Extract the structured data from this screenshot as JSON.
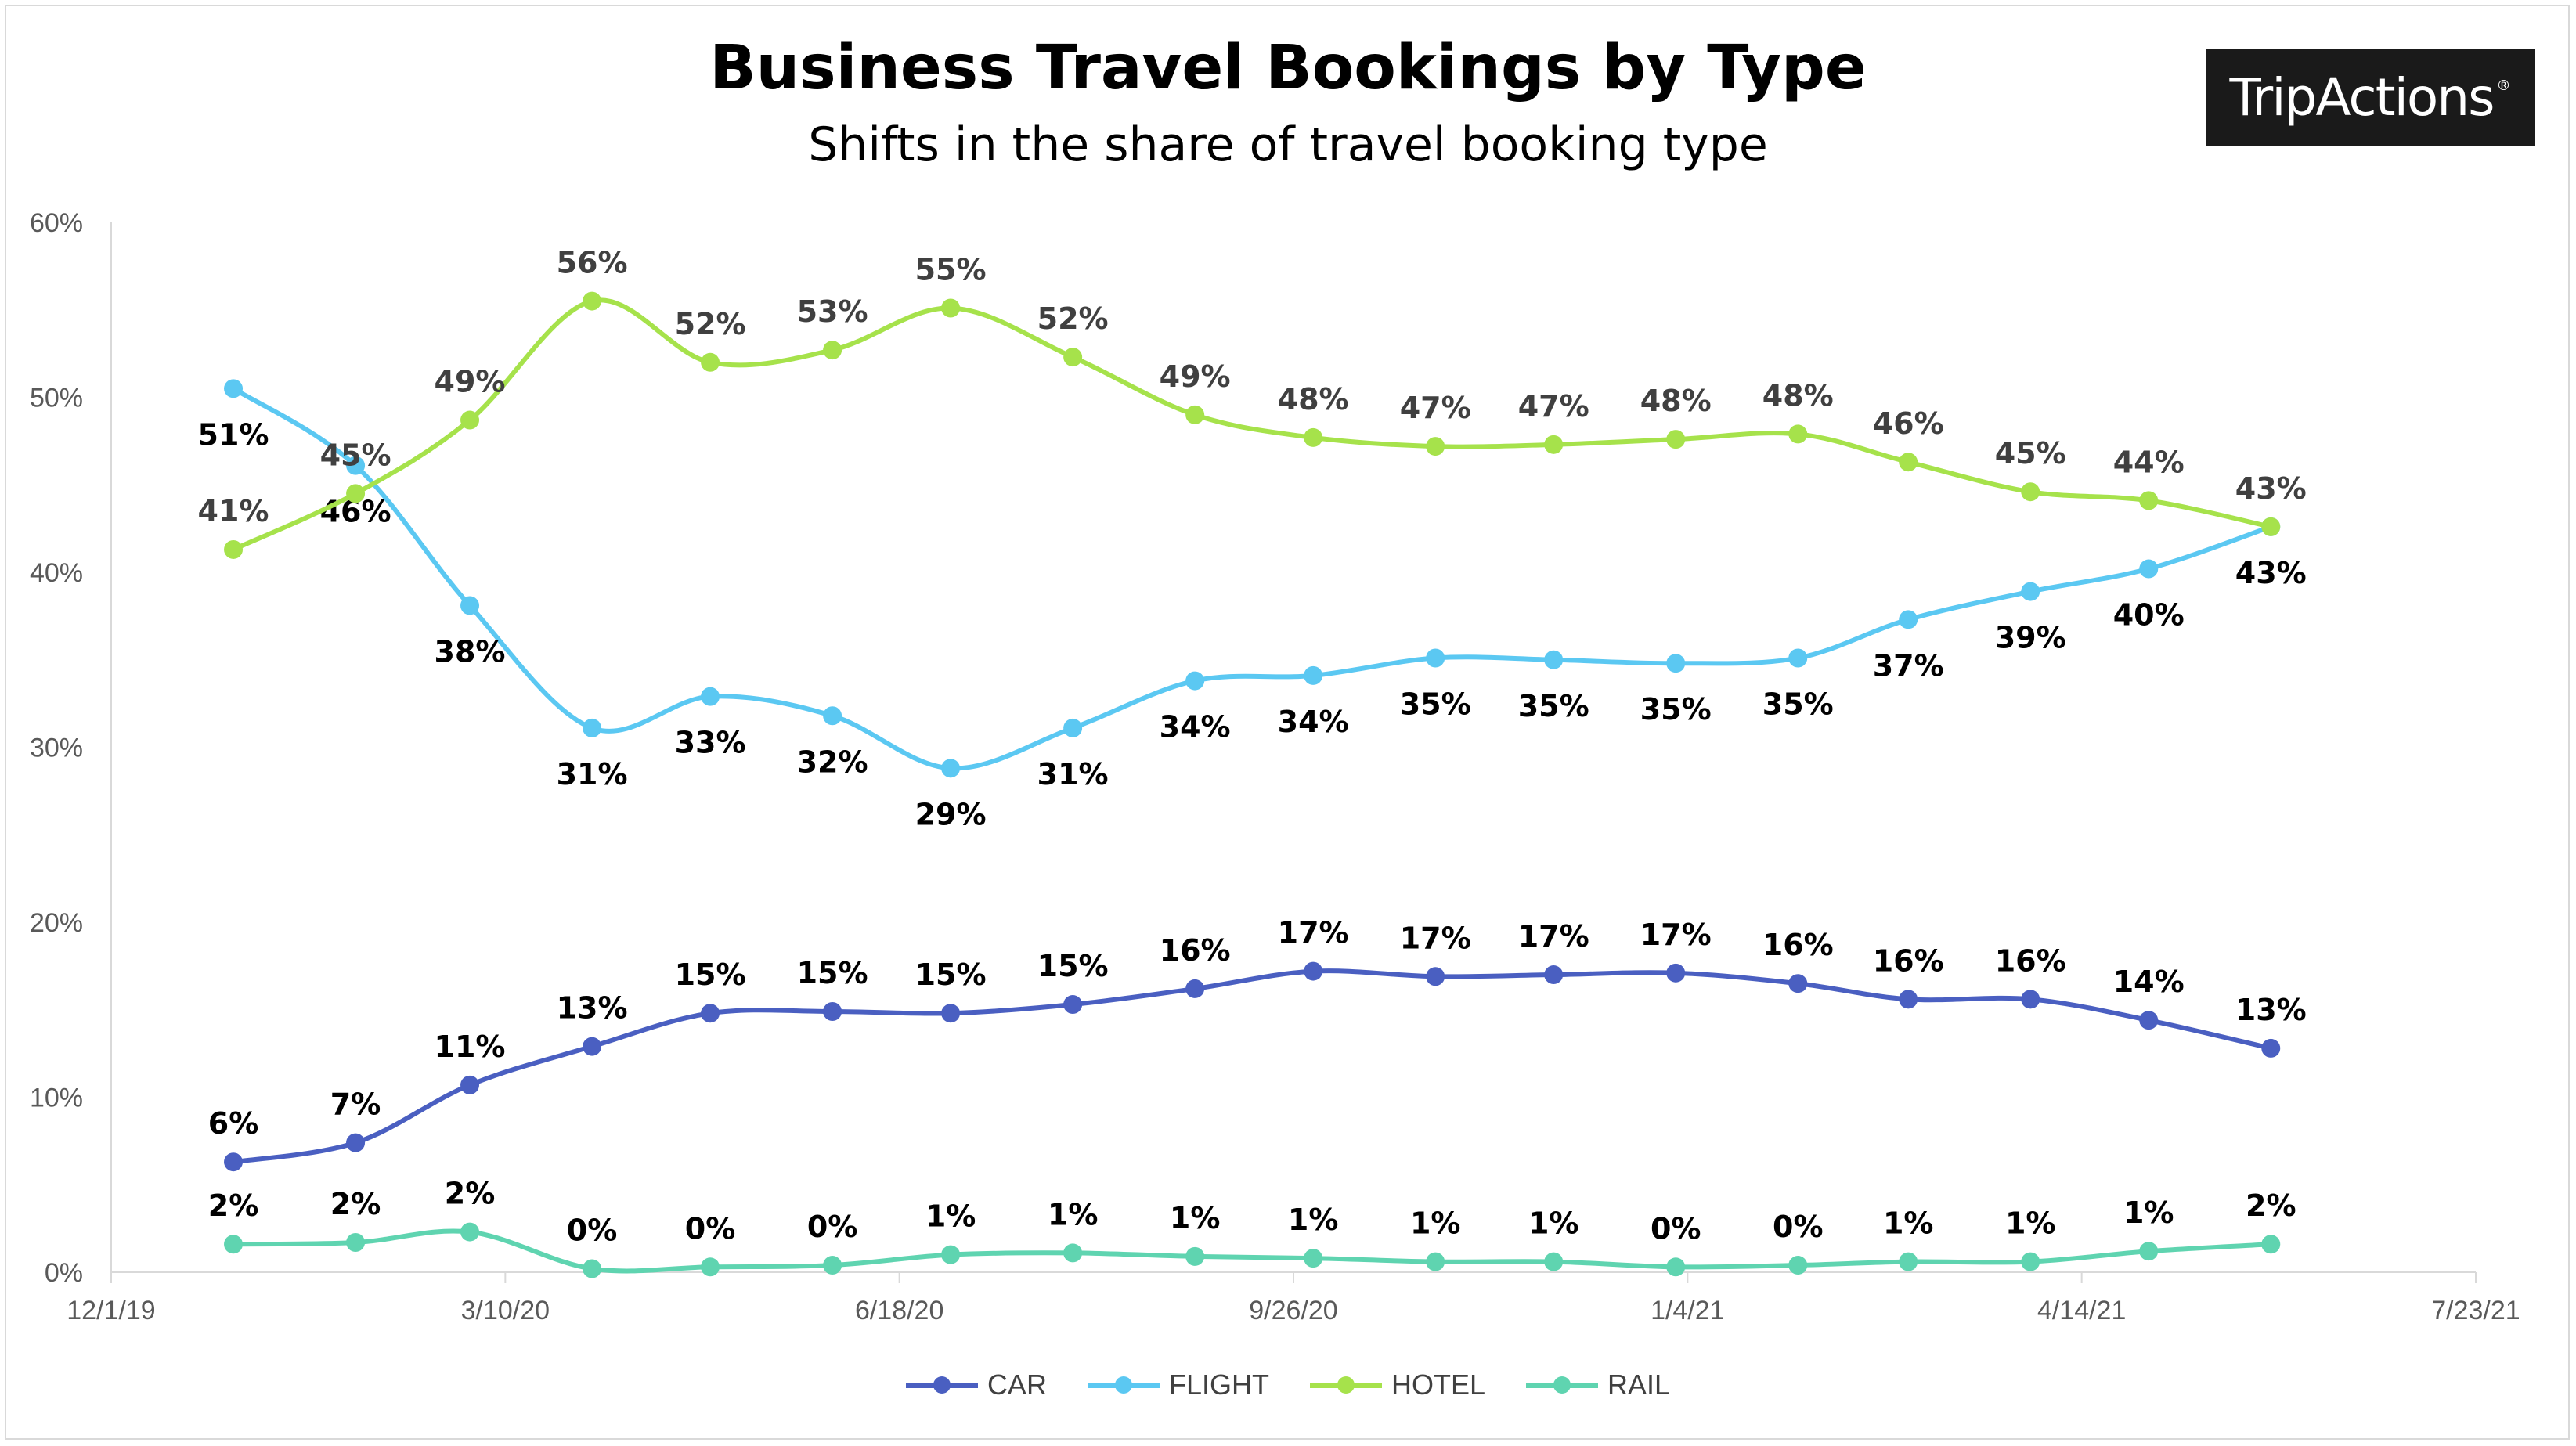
{
  "chart_data": {
    "type": "line",
    "title": "Business Travel Bookings by Type",
    "subtitle": "Shifts in the share of travel booking type",
    "brand": "TripActions",
    "x_ticks": [
      "12/1/19",
      "3/10/20",
      "6/18/20",
      "9/26/20",
      "1/4/21",
      "4/14/21",
      "7/23/21"
    ],
    "x_tick_dates": [
      "2019-12-01",
      "2020-03-10",
      "2020-06-18",
      "2020-09-26",
      "2021-01-04",
      "2021-04-14",
      "2021-07-23"
    ],
    "x": [
      "2020-01-01",
      "2020-02-01",
      "2020-03-01",
      "2020-04-01",
      "2020-05-01",
      "2020-06-01",
      "2020-07-01",
      "2020-08-01",
      "2020-09-01",
      "2020-10-01",
      "2020-11-01",
      "2020-12-01",
      "2021-01-01",
      "2021-02-01",
      "2021-03-01",
      "2021-04-01",
      "2021-05-01",
      "2021-06-01"
    ],
    "y_ticks": [
      "0%",
      "10%",
      "20%",
      "30%",
      "40%",
      "50%",
      "60%"
    ],
    "ylim": [
      0,
      60
    ],
    "grid": false,
    "legend_position": "bottom",
    "series": [
      {
        "name": "CAR",
        "color": "#4a5fc1",
        "label_color": "#000000",
        "label_position": "above",
        "values": [
          6.3,
          7.4,
          10.7,
          12.9,
          14.8,
          14.9,
          14.8,
          15.3,
          16.2,
          17.2,
          16.9,
          17.0,
          17.1,
          16.5,
          15.6,
          15.6,
          14.4,
          12.8
        ],
        "labels": [
          "6%",
          "7%",
          "11%",
          "13%",
          "15%",
          "15%",
          "15%",
          "15%",
          "16%",
          "17%",
          "17%",
          "17%",
          "17%",
          "16%",
          "16%",
          "16%",
          "14%",
          "13%"
        ]
      },
      {
        "name": "FLIGHT",
        "color": "#5bc8f2",
        "label_color": "#000000",
        "label_position": "below",
        "values": [
          50.5,
          46.1,
          38.1,
          31.1,
          32.9,
          31.8,
          28.8,
          31.1,
          33.8,
          34.1,
          35.1,
          35.0,
          34.8,
          35.1,
          37.3,
          38.9,
          40.2,
          42.6
        ],
        "labels": [
          "51%",
          "46%",
          "38%",
          "31%",
          "33%",
          "32%",
          "29%",
          "31%",
          "34%",
          "34%",
          "35%",
          "35%",
          "35%",
          "35%",
          "37%",
          "39%",
          "40%",
          "43%"
        ]
      },
      {
        "name": "HOTEL",
        "color": "#a6e24b",
        "label_color": "#404040",
        "label_position": "above",
        "values": [
          41.3,
          44.5,
          48.7,
          55.5,
          52.0,
          52.7,
          55.1,
          52.3,
          49.0,
          47.7,
          47.2,
          47.3,
          47.6,
          47.9,
          46.3,
          44.6,
          44.1,
          42.6
        ],
        "labels": [
          "41%",
          "45%",
          "49%",
          "56%",
          "52%",
          "53%",
          "55%",
          "52%",
          "49%",
          "48%",
          "47%",
          "47%",
          "48%",
          "48%",
          "46%",
          "45%",
          "44%",
          "43%"
        ]
      },
      {
        "name": "RAIL",
        "color": "#5fd4b0",
        "label_color": "#000000",
        "label_position": "above",
        "values": [
          1.6,
          1.7,
          2.3,
          0.2,
          0.3,
          0.4,
          1.0,
          1.1,
          0.9,
          0.8,
          0.6,
          0.6,
          0.3,
          0.4,
          0.6,
          0.6,
          1.2,
          1.6
        ],
        "labels": [
          "2%",
          "2%",
          "2%",
          "0%",
          "0%",
          "0%",
          "1%",
          "1%",
          "1%",
          "1%",
          "1%",
          "1%",
          "0%",
          "0%",
          "1%",
          "1%",
          "1%",
          "2%"
        ]
      }
    ]
  }
}
